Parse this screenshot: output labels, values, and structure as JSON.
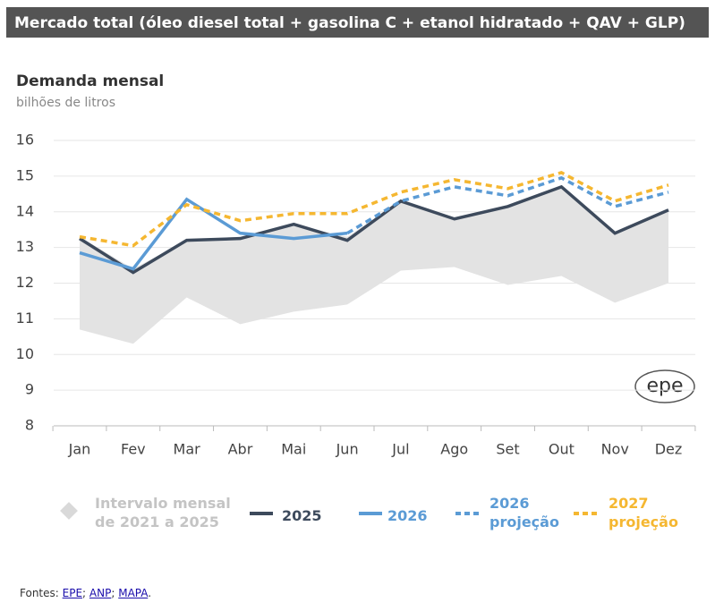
{
  "chart_data": {
    "type": "line",
    "title": "Mercado total (óleo diesel total + gasolina C + etanol hidratado + QAV + GLP)",
    "subtitle": "Demanda mensal",
    "y_label": "bilhões de litros",
    "categories": [
      "Jan",
      "Fev",
      "Mar",
      "Abr",
      "Mai",
      "Jun",
      "Jul",
      "Ago",
      "Set",
      "Out",
      "Nov",
      "Dez"
    ],
    "ylim": [
      8,
      16
    ],
    "yticks": [
      8,
      9,
      10,
      11,
      12,
      13,
      14,
      15,
      16
    ],
    "grid": true,
    "band": {
      "name": "Intervalo mensal de 2021 a 2025",
      "color": "#e3e3e3",
      "low": [
        10.7,
        10.3,
        11.6,
        10.85,
        11.2,
        11.4,
        12.35,
        12.45,
        11.95,
        12.2,
        11.45,
        12.0
      ],
      "high": [
        13.3,
        12.4,
        13.2,
        13.3,
        13.6,
        13.3,
        14.3,
        13.8,
        14.15,
        14.7,
        13.4,
        14.05
      ]
    },
    "series": [
      {
        "name": "2025",
        "color": "#3d4a5c",
        "dashed": false,
        "values": [
          13.25,
          12.3,
          13.2,
          13.25,
          13.65,
          13.2,
          14.3,
          13.8,
          14.15,
          14.7,
          13.4,
          14.05
        ]
      },
      {
        "name": "2026",
        "color": "#5b9bd5",
        "dashed": false,
        "values": [
          12.85,
          12.4,
          14.35,
          13.4,
          13.25,
          13.4,
          null,
          null,
          null,
          null,
          null,
          null
        ]
      },
      {
        "name": "2026 projeção",
        "color": "#5b9bd5",
        "dashed": true,
        "values": [
          null,
          null,
          null,
          null,
          null,
          13.4,
          14.3,
          14.7,
          14.45,
          14.95,
          14.15,
          14.55
        ]
      },
      {
        "name": "2027 projeção",
        "color": "#f5b731",
        "dashed": true,
        "values": [
          13.3,
          13.05,
          14.2,
          13.75,
          13.95,
          13.95,
          14.55,
          14.9,
          14.65,
          15.1,
          14.3,
          14.75
        ]
      }
    ],
    "logo": "epe",
    "sources_label": "Fontes:",
    "sources": [
      "EPE",
      "ANP",
      "MAPA"
    ],
    "separator": ";",
    "end": "."
  }
}
